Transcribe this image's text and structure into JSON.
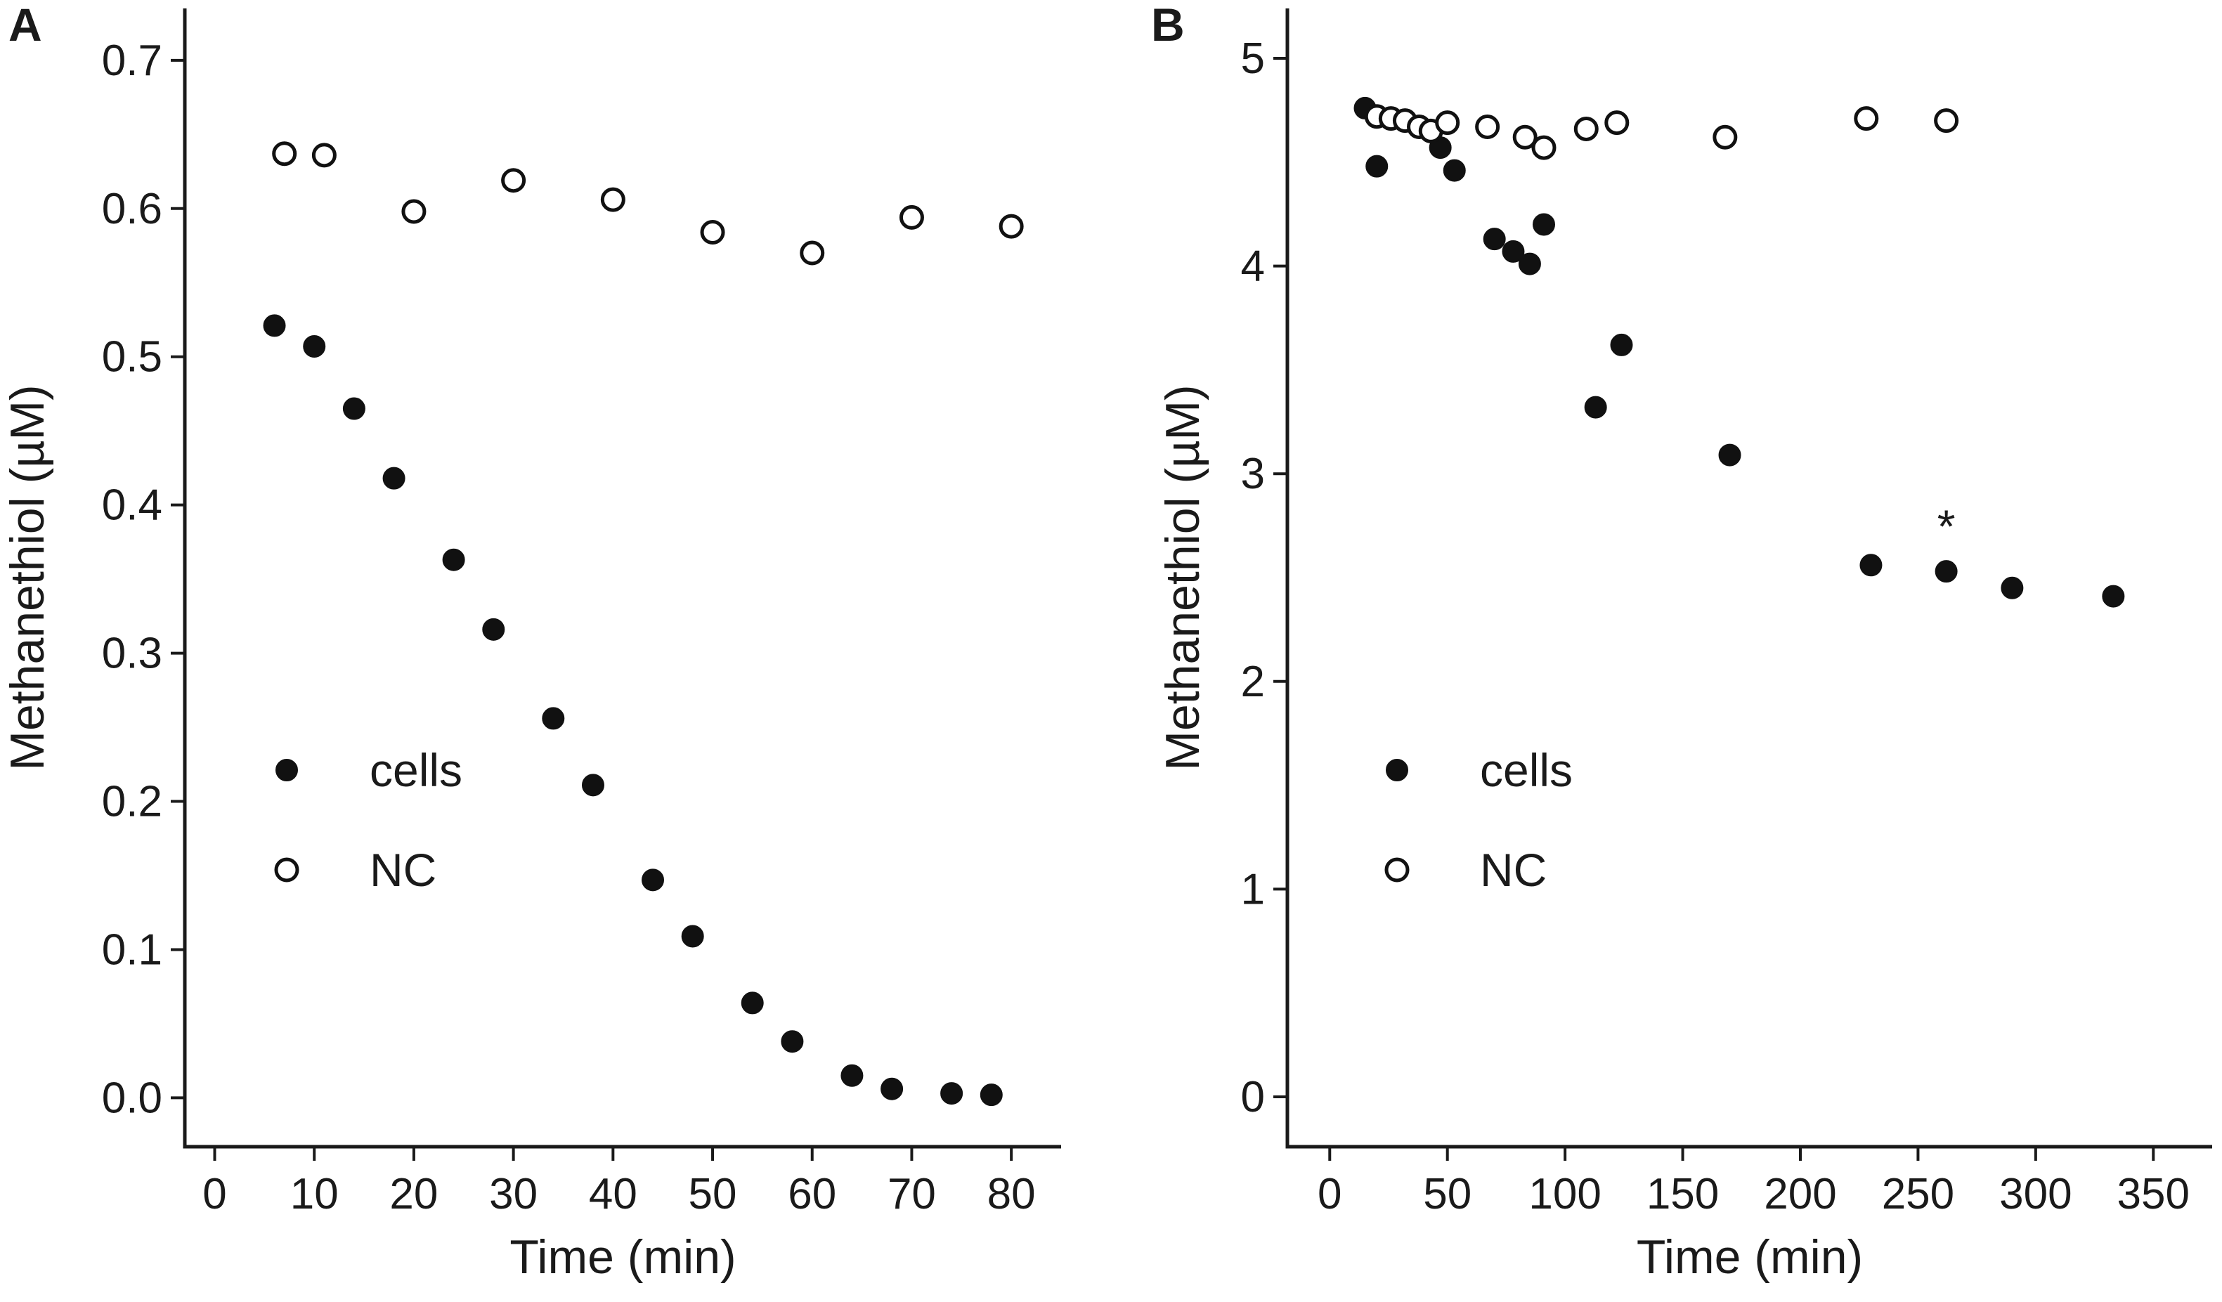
{
  "chart_data": [
    {
      "type": "scatter",
      "panel_label": "A",
      "title": "",
      "xlabel": "Time (min)",
      "ylabel": "Methanethiol (µM)",
      "xlim": [
        -3,
        85
      ],
      "ylim": [
        -0.033,
        0.735
      ],
      "x_ticks": [
        0,
        10,
        20,
        30,
        40,
        50,
        60,
        70,
        80
      ],
      "x_tick_labels": [
        "0",
        "10",
        "20",
        "30",
        "40",
        "50",
        "60",
        "70",
        "80"
      ],
      "y_ticks": [
        0.0,
        0.1,
        0.2,
        0.3,
        0.4,
        0.5,
        0.6,
        0.7
      ],
      "y_tick_labels": [
        "0.0",
        "0.1",
        "0.2",
        "0.3",
        "0.4",
        "0.5",
        "0.6",
        "0.7"
      ],
      "grid": false,
      "legend_position": "middle-left",
      "series": [
        {
          "name": "cells",
          "marker": "filled-circle",
          "color": "#111111",
          "x": [
            6,
            10,
            14,
            18,
            24,
            28,
            34,
            38,
            44,
            48,
            54,
            58,
            64,
            68,
            74,
            78
          ],
          "y": [
            0.521,
            0.507,
            0.465,
            0.418,
            0.363,
            0.316,
            0.256,
            0.211,
            0.147,
            0.109,
            0.064,
            0.038,
            0.015,
            0.006,
            0.003,
            0.002
          ]
        },
        {
          "name": "NC",
          "marker": "open-circle",
          "color": "#111111",
          "x": [
            7,
            11,
            20,
            30,
            40,
            50,
            60,
            70,
            80
          ],
          "y": [
            0.637,
            0.636,
            0.598,
            0.619,
            0.606,
            0.584,
            0.57,
            0.594,
            0.588
          ]
        }
      ],
      "annotations": []
    },
    {
      "type": "scatter",
      "panel_label": "B",
      "title": "",
      "xlabel": "Time (min)",
      "ylabel": "Methanethiol (µM)",
      "xlim": [
        -18,
        375
      ],
      "ylim": [
        -0.24,
        5.24
      ],
      "x_ticks": [
        0,
        50,
        100,
        150,
        200,
        250,
        300,
        350
      ],
      "x_tick_labels": [
        "0",
        "50",
        "100",
        "150",
        "200",
        "250",
        "300",
        "350"
      ],
      "y_ticks": [
        0,
        1,
        2,
        3,
        4,
        5
      ],
      "y_tick_labels": [
        "0",
        "1",
        "2",
        "3",
        "4",
        "5"
      ],
      "grid": false,
      "legend_position": "middle-left",
      "series": [
        {
          "name": "cells",
          "marker": "filled-circle",
          "color": "#111111",
          "x": [
            15,
            20,
            47,
            53,
            70,
            78,
            85,
            91,
            113,
            124,
            170,
            230,
            262,
            290,
            333
          ],
          "y": [
            4.76,
            4.48,
            4.57,
            4.46,
            4.13,
            4.07,
            4.01,
            4.2,
            3.32,
            3.62,
            3.09,
            2.56,
            2.53,
            2.45,
            2.41
          ]
        },
        {
          "name": "NC",
          "marker": "open-circle",
          "color": "#111111",
          "x": [
            20,
            26,
            32,
            38,
            43,
            50,
            67,
            83,
            91,
            109,
            122,
            168,
            228,
            262
          ],
          "y": [
            4.72,
            4.71,
            4.7,
            4.67,
            4.65,
            4.69,
            4.67,
            4.62,
            4.57,
            4.66,
            4.69,
            4.62,
            4.71,
            4.7
          ]
        }
      ],
      "annotations": [
        {
          "text": "*",
          "x": 262,
          "y": 2.75
        }
      ]
    }
  ]
}
